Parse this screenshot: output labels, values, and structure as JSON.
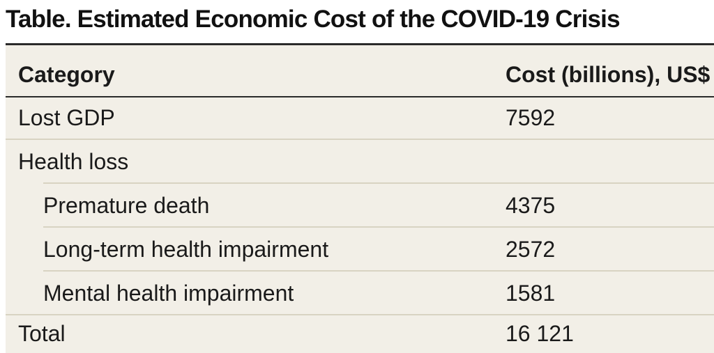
{
  "title": "Table. Estimated Economic Cost of the COVID-19 Crisis",
  "table": {
    "headers": {
      "category": "Category",
      "cost": "Cost (billions), US$"
    },
    "rows": [
      {
        "category": "Lost GDP",
        "cost": "7592"
      },
      {
        "category": "Health loss",
        "cost": ""
      },
      {
        "category": "Premature death",
        "cost": "4375"
      },
      {
        "category": "Long-term health impairment",
        "cost": "2572"
      },
      {
        "category": "Mental health impairment",
        "cost": "1581"
      },
      {
        "category": "Total",
        "cost": "16 121"
      }
    ]
  },
  "colors": {
    "table_background": "#f2efe7",
    "rule": "#2a2a2a",
    "separator": "#d8d3c2"
  }
}
